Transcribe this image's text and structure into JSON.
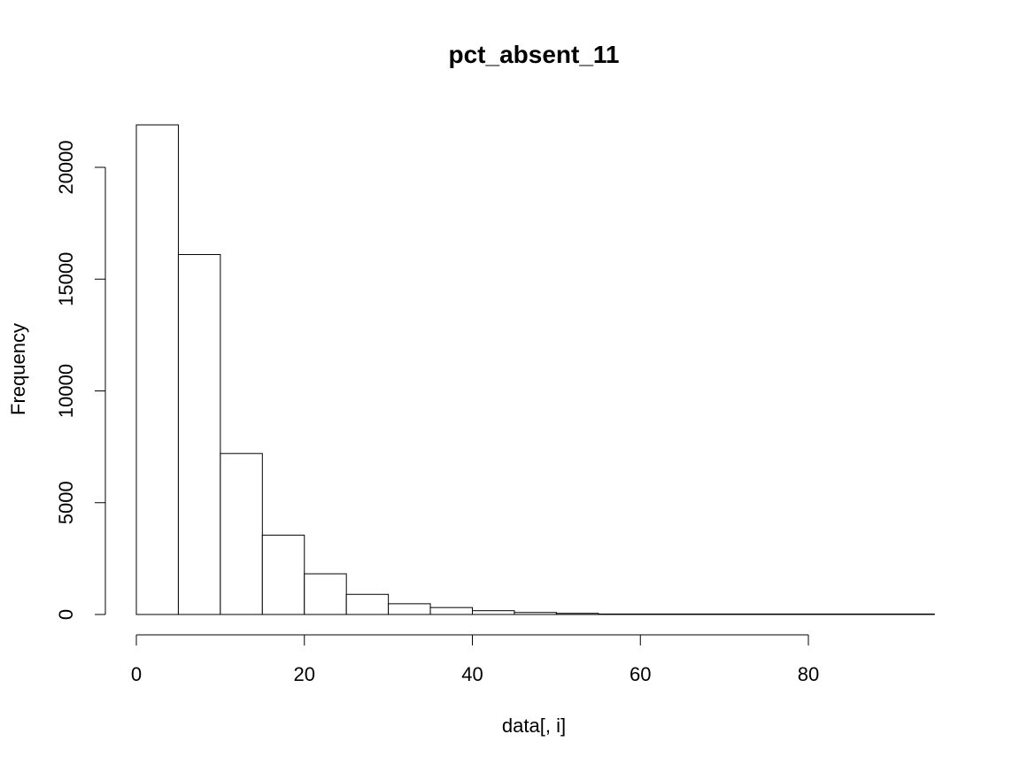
{
  "chart_data": {
    "type": "bar",
    "title": "pct_absent_11",
    "xlabel": "data[, i]",
    "ylabel": "Frequency",
    "bins": [
      {
        "from": 0,
        "to": 5,
        "count": 21900
      },
      {
        "from": 5,
        "to": 10,
        "count": 16100
      },
      {
        "from": 10,
        "to": 15,
        "count": 7200
      },
      {
        "from": 15,
        "to": 20,
        "count": 3550
      },
      {
        "from": 20,
        "to": 25,
        "count": 1820
      },
      {
        "from": 25,
        "to": 30,
        "count": 900
      },
      {
        "from": 30,
        "to": 35,
        "count": 480
      },
      {
        "from": 35,
        "to": 40,
        "count": 310
      },
      {
        "from": 40,
        "to": 45,
        "count": 170
      },
      {
        "from": 45,
        "to": 50,
        "count": 90
      },
      {
        "from": 50,
        "to": 55,
        "count": 50
      },
      {
        "from": 55,
        "to": 60,
        "count": 20
      },
      {
        "from": 60,
        "to": 65,
        "count": 10
      },
      {
        "from": 65,
        "to": 70,
        "count": 5
      },
      {
        "from": 70,
        "to": 75,
        "count": 3
      },
      {
        "from": 75,
        "to": 80,
        "count": 2
      },
      {
        "from": 80,
        "to": 85,
        "count": 1
      },
      {
        "from": 85,
        "to": 90,
        "count": 1
      },
      {
        "from": 90,
        "to": 95,
        "count": 1
      }
    ],
    "xticks": [
      0,
      20,
      40,
      60,
      80
    ],
    "yticks": [
      0,
      5000,
      10000,
      15000,
      20000
    ],
    "xlim": [
      0,
      95
    ],
    "ylim": [
      0,
      22000
    ],
    "grid": false,
    "legend": "none"
  }
}
